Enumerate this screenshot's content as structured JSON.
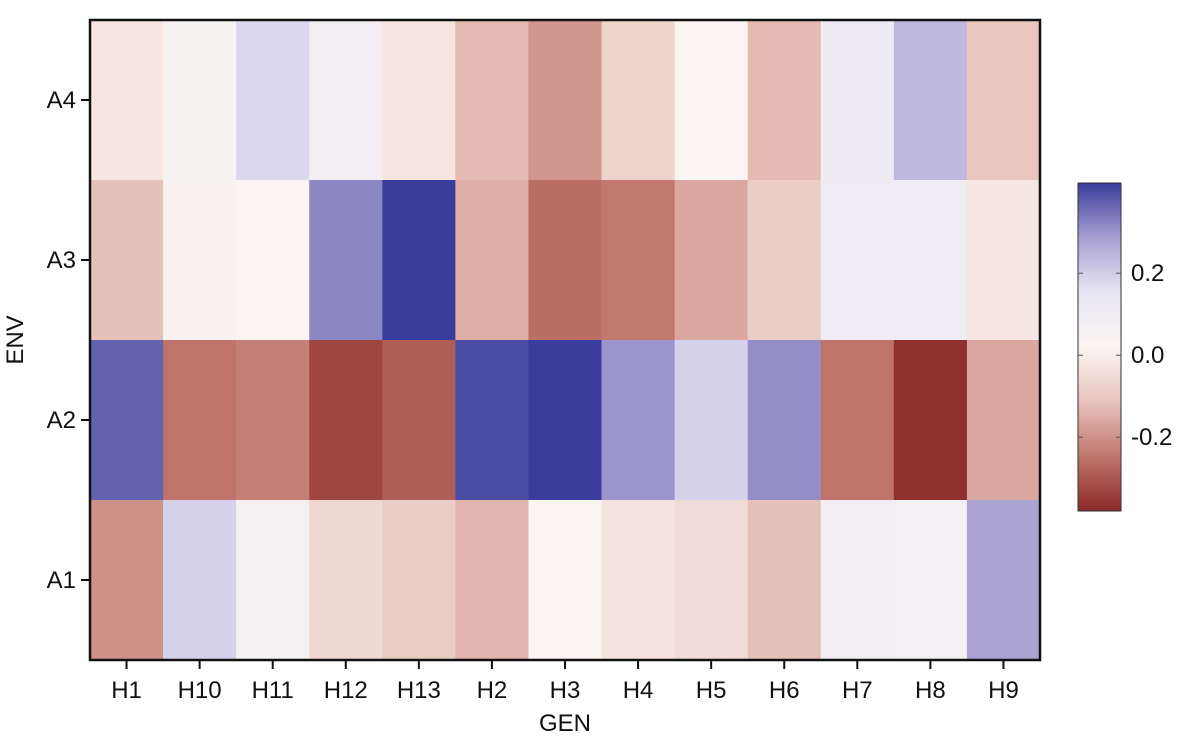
{
  "chart_data": {
    "type": "heatmap",
    "title": "",
    "xlabel": "GEN",
    "ylabel": "ENV",
    "x_categories": [
      "H1",
      "H10",
      "H11",
      "H12",
      "H13",
      "H2",
      "H3",
      "H4",
      "H5",
      "H6",
      "H7",
      "H8",
      "H9"
    ],
    "y_categories": [
      "A4",
      "A3",
      "A2",
      "A1"
    ],
    "values": [
      [
        -0.02,
        0.05,
        0.18,
        0.08,
        -0.02,
        -0.13,
        -0.19,
        -0.07,
        0.03,
        -0.13,
        0.11,
        0.24,
        -0.11
      ],
      [
        -0.12,
        0.04,
        0.02,
        0.32,
        0.42,
        -0.15,
        -0.26,
        -0.24,
        -0.16,
        -0.09,
        0.1,
        0.1,
        -0.02
      ],
      [
        0.37,
        -0.25,
        -0.23,
        -0.33,
        -0.29,
        0.4,
        0.42,
        0.3,
        0.19,
        0.31,
        -0.25,
        -0.37,
        -0.16
      ],
      [
        -0.2,
        0.19,
        0.06,
        -0.06,
        -0.09,
        -0.14,
        0.03,
        -0.03,
        -0.05,
        -0.12,
        0.08,
        0.07,
        0.28
      ]
    ],
    "colorbar": {
      "vmin": -0.38,
      "vmax": 0.42,
      "ticks": [
        0.2,
        0.0,
        -0.2
      ],
      "tick_labels": [
        "0.2",
        "0.0",
        "-0.2"
      ],
      "colormap": [
        "#8b2a2a",
        "#c0756c",
        "#e9c4bd",
        "#fbf5f2",
        "#e8e6f4",
        "#a79fd2",
        "#3a3d9b"
      ]
    }
  }
}
